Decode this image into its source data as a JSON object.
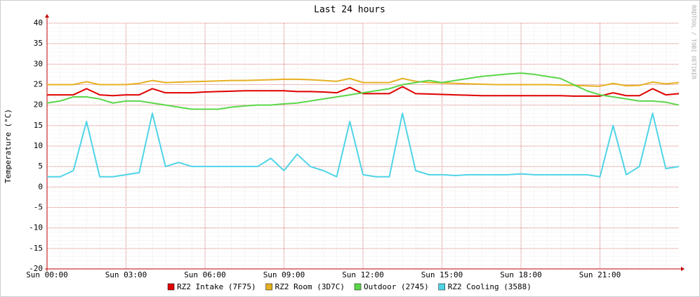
{
  "chart_data": {
    "type": "line",
    "title": "Last 24 hours",
    "y_label": "Temperature (°C)",
    "side_label": "RRDTOOL / TOBI OETIKER",
    "x": [
      0,
      0.5,
      1,
      1.5,
      2,
      2.5,
      3,
      3.5,
      4,
      4.5,
      5,
      5.5,
      6,
      6.5,
      7,
      7.5,
      8,
      8.5,
      9,
      9.5,
      10,
      10.5,
      11,
      11.5,
      12,
      12.5,
      13,
      13.5,
      14,
      14.5,
      15,
      15.5,
      16,
      16.5,
      17,
      17.5,
      18,
      18.5,
      19,
      19.5,
      20,
      20.5,
      21,
      21.5,
      22,
      22.5,
      23,
      23.5,
      24
    ],
    "xlim": [
      0,
      24
    ],
    "xticks": [
      {
        "value": 0,
        "label": "Sun 00:00"
      },
      {
        "value": 3,
        "label": "Sun 03:00"
      },
      {
        "value": 6,
        "label": "Sun 06:00"
      },
      {
        "value": 9,
        "label": "Sun 09:00"
      },
      {
        "value": 12,
        "label": "Sun 12:00"
      },
      {
        "value": 15,
        "label": "Sun 15:00"
      },
      {
        "value": 18,
        "label": "Sun 18:00"
      },
      {
        "value": 21,
        "label": "Sun 21:00"
      }
    ],
    "ylim": [
      -20,
      40
    ],
    "yticks": [
      -20,
      -15,
      -10,
      -5,
      0,
      5,
      10,
      15,
      20,
      25,
      30,
      35,
      40
    ],
    "grid": true,
    "legend": "bottom",
    "series": [
      {
        "name": "RZ2 Intake (7F75)",
        "color": "#e00000",
        "values": [
          22.5,
          22.5,
          22.5,
          24,
          22.5,
          22.3,
          22.5,
          22.5,
          24,
          23,
          23,
          23,
          23.2,
          23.3,
          23.4,
          23.5,
          23.5,
          23.5,
          23.5,
          23.3,
          23.3,
          23.2,
          23,
          24.3,
          22.8,
          22.8,
          22.8,
          24.5,
          22.8,
          22.7,
          22.6,
          22.5,
          22.4,
          22.3,
          22.3,
          22.3,
          22.3,
          22.3,
          22.3,
          22.3,
          22.2,
          22.2,
          22.2,
          23,
          22.3,
          22.3,
          24,
          22.5,
          22.8
        ]
      },
      {
        "name": "RZ2 Room (3D7C)",
        "color": "#e6b020",
        "values": [
          25,
          25,
          25,
          25.7,
          25,
          25,
          25,
          25.3,
          26,
          25.5,
          25.6,
          25.7,
          25.8,
          25.9,
          26,
          26,
          26.1,
          26.2,
          26.3,
          26.3,
          26.2,
          26,
          25.8,
          26.5,
          25.5,
          25.5,
          25.5,
          26.5,
          25.8,
          25.5,
          25.4,
          25.3,
          25.2,
          25.1,
          25,
          25,
          25,
          25,
          25,
          24.9,
          24.8,
          24.7,
          24.6,
          25.3,
          24.7,
          24.8,
          25.6,
          25.2,
          25.5
        ]
      },
      {
        "name": "Outdoor (2745)",
        "color": "#5cd64a",
        "values": [
          20.5,
          21,
          22,
          22,
          21.5,
          20.5,
          21,
          21,
          20.5,
          20,
          19.5,
          19,
          19,
          19,
          19.5,
          19.8,
          20,
          20,
          20.3,
          20.5,
          21,
          21.5,
          22,
          22.5,
          23,
          23.5,
          24,
          25,
          25.5,
          26,
          25.5,
          26,
          26.5,
          27,
          27.3,
          27.6,
          27.8,
          27.5,
          27,
          26.5,
          25,
          23.5,
          22.5,
          22,
          21.5,
          21,
          21,
          20.7,
          20
        ]
      },
      {
        "name": "RZ2 Cooling (3588)",
        "color": "#4fd4e6",
        "values": [
          2.5,
          2.5,
          4,
          16,
          2.5,
          2.5,
          3,
          3.5,
          18,
          5,
          6,
          5,
          5,
          5,
          5,
          5,
          5,
          7,
          4,
          8,
          5,
          4,
          2.5,
          16,
          3,
          2.5,
          2.5,
          18,
          4,
          3,
          3,
          2.8,
          3,
          3,
          3,
          3,
          3.2,
          3,
          3,
          3,
          3,
          3,
          2.5,
          15,
          3,
          5,
          18,
          4.5,
          5
        ]
      }
    ]
  }
}
